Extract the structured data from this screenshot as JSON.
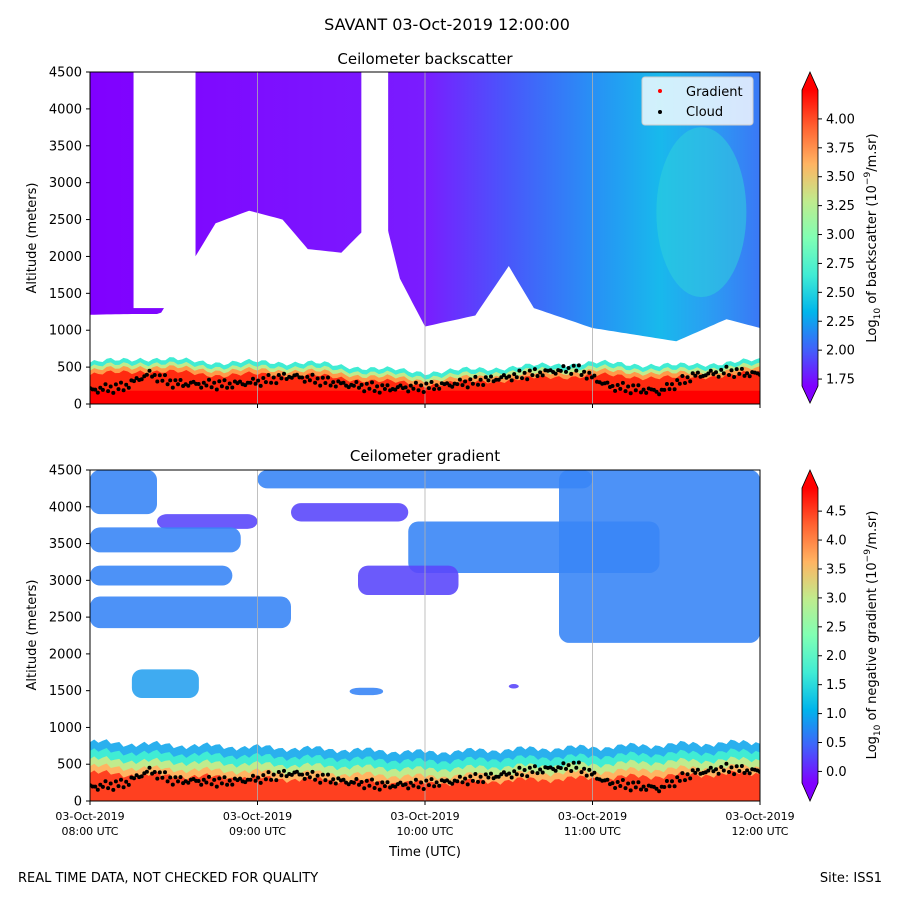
{
  "figure": {
    "suptitle": "SAVANT 03-Oct-2019 12:00:00",
    "footer_left": "REAL TIME DATA, NOT CHECKED FOR QUALITY",
    "footer_right": "Site: ISS1",
    "colors": {
      "rainbow": [
        "#8000ff",
        "#4062fa",
        "#00b5eb",
        "#40ecd4",
        "#80ffb4",
        "#c0eb8d",
        "#ffb462",
        "#ff6231",
        "#ff0000"
      ],
      "gradient_marker": "#ff0000",
      "cloud_marker": "#000000",
      "gridline": "#b0b0b0"
    }
  },
  "chart_data": [
    {
      "type": "heatmap",
      "title": "Ceilometer backscatter",
      "xlabel": "",
      "ylabel": "Altitude (meters)",
      "ylim": [
        0,
        4500
      ],
      "yticks": [
        "0",
        "500",
        "1000",
        "1500",
        "2000",
        "2500",
        "3000",
        "3500",
        "4000",
        "4500"
      ],
      "xticks": [],
      "xlim_hours_utc": [
        8,
        12
      ],
      "grid": "vertical at hourly ticks",
      "legend": {
        "placement": "top-right",
        "entries": [
          {
            "label": "Gradient",
            "color": "#ff0000"
          },
          {
            "label": "Cloud",
            "color": "#000000"
          }
        ]
      },
      "colorbar": {
        "label": "Log10 of backscatter (10^-9/m.sr)",
        "label_base": "Log",
        "label_sub": "10",
        "label_mid": " of backscatter (10",
        "label_sup": "−9",
        "label_end": "/m.sr)",
        "ticks": [
          "1.75",
          "2.00",
          "2.25",
          "2.50",
          "2.75",
          "3.00",
          "3.25",
          "3.50",
          "3.75",
          "4.00"
        ],
        "range": [
          1.69,
          4.25
        ],
        "extend": "both"
      },
      "upper_signal_top_m": 4500,
      "upper_signal_base_m": [
        [
          8.0,
          1210
        ],
        [
          8.25,
          1220
        ],
        [
          8.42,
          1220
        ],
        [
          8.75,
          2450
        ],
        [
          8.95,
          2620
        ],
        [
          9.15,
          2500
        ],
        [
          9.3,
          2100
        ],
        [
          9.5,
          2050
        ],
        [
          9.75,
          2620
        ],
        [
          9.85,
          1700
        ],
        [
          10.0,
          1050
        ],
        [
          10.3,
          1200
        ],
        [
          10.5,
          1870
        ],
        [
          10.65,
          1300
        ],
        [
          11.0,
          1030
        ],
        [
          11.5,
          850
        ],
        [
          11.8,
          1150
        ],
        [
          12.0,
          1030
        ]
      ],
      "upper_signal_gaps_hours": [
        [
          8.26,
          8.63
        ],
        [
          9.62,
          9.78
        ]
      ],
      "boundary_layer_top_m": [
        [
          8.0,
          560
        ],
        [
          8.3,
          620
        ],
        [
          8.5,
          600
        ],
        [
          8.8,
          560
        ],
        [
          9.0,
          570
        ],
        [
          9.3,
          560
        ],
        [
          9.5,
          520
        ],
        [
          10.0,
          430
        ],
        [
          10.5,
          500
        ],
        [
          11.0,
          560
        ],
        [
          11.5,
          520
        ],
        [
          12.0,
          590
        ]
      ],
      "cloud_base_m": [
        [
          8.0,
          190
        ],
        [
          8.2,
          230
        ],
        [
          8.35,
          410
        ],
        [
          8.5,
          280
        ],
        [
          8.8,
          260
        ],
        [
          9.0,
          300
        ],
        [
          9.2,
          380
        ],
        [
          9.5,
          270
        ],
        [
          9.75,
          210
        ],
        [
          10.0,
          230
        ],
        [
          10.3,
          300
        ],
        [
          10.6,
          400
        ],
        [
          10.9,
          480
        ],
        [
          11.1,
          240
        ],
        [
          11.4,
          170
        ],
        [
          11.6,
          380
        ],
        [
          11.8,
          440
        ],
        [
          12.0,
          400
        ]
      ]
    },
    {
      "type": "heatmap",
      "title": "Ceilometer gradient",
      "xlabel": "Time (UTC)",
      "ylabel": "Altitude (meters)",
      "ylim": [
        0,
        4500
      ],
      "yticks": [
        "0",
        "500",
        "1000",
        "1500",
        "2000",
        "2500",
        "3000",
        "3500",
        "4000",
        "4500"
      ],
      "xlim_hours_utc": [
        8,
        12
      ],
      "xticks": [
        {
          "date": "03-Oct-2019",
          "time": "08:00 UTC",
          "hour": 8
        },
        {
          "date": "03-Oct-2019",
          "time": "09:00 UTC",
          "hour": 9
        },
        {
          "date": "03-Oct-2019",
          "time": "10:00 UTC",
          "hour": 10
        },
        {
          "date": "03-Oct-2019",
          "time": "11:00 UTC",
          "hour": 11
        },
        {
          "date": "03-Oct-2019",
          "time": "12:00 UTC",
          "hour": 12
        }
      ],
      "grid": "vertical at hourly ticks",
      "colorbar": {
        "label": "Log10 of negative gradient (10^-9/m.sr)",
        "label_base": "Log",
        "label_sub": "10",
        "label_mid": " of negative gradient (10",
        "label_sup": "−9",
        "label_end": "/m.sr)",
        "ticks": [
          "0.0",
          "0.5",
          "1.0",
          "1.5",
          "2.0",
          "2.5",
          "3.0",
          "3.5",
          "4.0",
          "4.5"
        ],
        "range": [
          -0.2,
          4.9
        ],
        "extend": "both"
      },
      "upper_patches": [
        {
          "h0": 8.0,
          "h1": 8.4,
          "z0": 3900,
          "z1": 4500,
          "level": 0.4
        },
        {
          "h0": 8.4,
          "h1": 9.0,
          "z0": 3700,
          "z1": 3900,
          "level": 0.25
        },
        {
          "h0": 8.0,
          "h1": 8.9,
          "z0": 3380,
          "z1": 3720,
          "level": 0.4
        },
        {
          "h0": 8.0,
          "h1": 8.85,
          "z0": 2930,
          "z1": 3200,
          "level": 0.4
        },
        {
          "h0": 8.0,
          "h1": 9.2,
          "z0": 2350,
          "z1": 2780,
          "level": 0.35
        },
        {
          "h0": 9.0,
          "h1": 11.0,
          "z0": 4250,
          "z1": 4500,
          "level": 0.4
        },
        {
          "h0": 9.2,
          "h1": 9.9,
          "z0": 3800,
          "z1": 4050,
          "level": 0.2
        },
        {
          "h0": 9.9,
          "h1": 11.4,
          "z0": 3100,
          "z1": 3800,
          "level": 0.35
        },
        {
          "h0": 10.8,
          "h1": 12.0,
          "z0": 2150,
          "z1": 4500,
          "level": 0.4
        },
        {
          "h0": 9.6,
          "h1": 10.2,
          "z0": 2800,
          "z1": 3200,
          "level": 0.2
        },
        {
          "h0": 8.25,
          "h1": 8.65,
          "z0": 1400,
          "z1": 1790,
          "level": 0.45
        },
        {
          "h0": 9.55,
          "h1": 9.75,
          "z0": 1440,
          "z1": 1540,
          "level": 0.4
        },
        {
          "h0": 10.5,
          "h1": 10.56,
          "z0": 1530,
          "z1": 1590,
          "level": 0.3
        }
      ],
      "boundary_layer_top_m": [
        [
          8.0,
          800
        ],
        [
          8.5,
          760
        ],
        [
          9.0,
          730
        ],
        [
          9.5,
          700
        ],
        [
          10.0,
          660
        ],
        [
          10.5,
          700
        ],
        [
          11.0,
          730
        ],
        [
          11.5,
          770
        ],
        [
          12.0,
          800
        ]
      ],
      "cloud_base_m": [
        [
          8.0,
          190
        ],
        [
          8.2,
          230
        ],
        [
          8.35,
          410
        ],
        [
          8.5,
          280
        ],
        [
          8.8,
          260
        ],
        [
          9.0,
          300
        ],
        [
          9.2,
          380
        ],
        [
          9.5,
          270
        ],
        [
          9.75,
          210
        ],
        [
          10.0,
          230
        ],
        [
          10.3,
          300
        ],
        [
          10.6,
          400
        ],
        [
          10.9,
          480
        ],
        [
          11.1,
          240
        ],
        [
          11.4,
          170
        ],
        [
          11.6,
          380
        ],
        [
          11.8,
          440
        ],
        [
          12.0,
          400
        ]
      ]
    }
  ]
}
